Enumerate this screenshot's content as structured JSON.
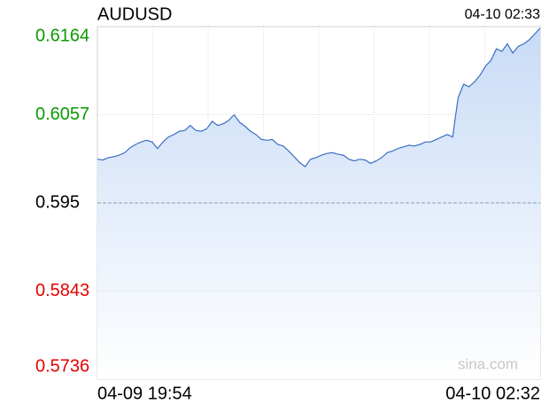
{
  "chart_data": {
    "type": "area",
    "title": "AUDUSD",
    "timestamp": "04-10 02:33",
    "watermark": "sina.com",
    "color": "#3b6fc3",
    "fill_color": "#c8dbf6",
    "up_color": "#0a9a00",
    "down_color": "#e60000",
    "base_color": "#000000",
    "baseline": 0.595,
    "ylim": [
      0.5736,
      0.6164
    ],
    "yticks": [
      0.6164,
      0.6057,
      0.595,
      0.5843,
      0.5736
    ],
    "xticks": [
      {
        "value": 0,
        "label": "04-09 19:54"
      },
      {
        "value": 81,
        "label": "04-10 02:32"
      }
    ],
    "xlim": [
      0,
      81
    ],
    "values": [
      0.6003,
      0.6002,
      0.6005,
      0.6006,
      0.6008,
      0.6011,
      0.6017,
      0.6021,
      0.6024,
      0.6026,
      0.6024,
      0.6016,
      0.6024,
      0.603,
      0.6033,
      0.6037,
      0.6038,
      0.6044,
      0.6038,
      0.6037,
      0.604,
      0.6049,
      0.6044,
      0.6046,
      0.605,
      0.6057,
      0.6048,
      0.6043,
      0.6037,
      0.6033,
      0.6027,
      0.6026,
      0.6027,
      0.6021,
      0.6019,
      0.6013,
      0.6006,
      0.5999,
      0.5994,
      0.6003,
      0.6005,
      0.6008,
      0.601,
      0.6011,
      0.6009,
      0.6008,
      0.6003,
      0.6001,
      0.6003,
      0.6002,
      0.5998,
      0.6001,
      0.6005,
      0.6011,
      0.6013,
      0.6016,
      0.6018,
      0.602,
      0.6019,
      0.6021,
      0.6024,
      0.6024,
      0.6027,
      0.603,
      0.6033,
      0.603,
      0.6078,
      0.6094,
      0.6091,
      0.6097,
      0.6105,
      0.6116,
      0.6123,
      0.6137,
      0.6134,
      0.6143,
      0.6132,
      0.614,
      0.6143,
      0.6148,
      0.6155,
      0.6162
    ]
  }
}
